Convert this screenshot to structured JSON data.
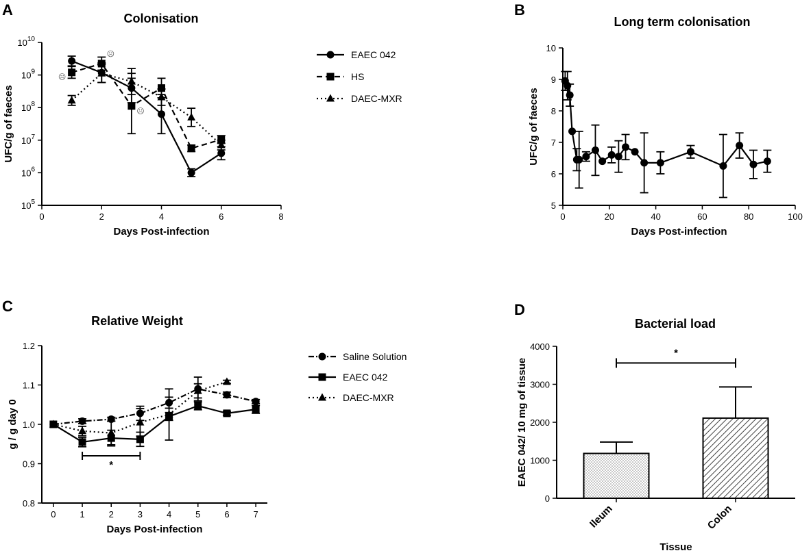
{
  "chart_data": [
    {
      "id": "A",
      "panel_letter": "A",
      "type": "line",
      "title": "Colonisation",
      "xlabel": "Days Post-infection",
      "ylabel": "UFC/g of faeces",
      "xlim": [
        0,
        8
      ],
      "ylim_log10": [
        5,
        10
      ],
      "y_scale": "log",
      "x_ticks": [
        0,
        2,
        4,
        6,
        8
      ],
      "y_ticks": [
        5,
        6,
        7,
        8,
        9,
        10
      ],
      "y_tick_labels": [
        {
          "base": "10",
          "exp": "5"
        },
        {
          "base": "10",
          "exp": "6"
        },
        {
          "base": "10",
          "exp": "7"
        },
        {
          "base": "10",
          "exp": "8"
        },
        {
          "base": "10",
          "exp": "9"
        },
        {
          "base": "10",
          "exp": "10"
        }
      ],
      "legend_position": "right",
      "series": [
        {
          "name": "EAEC 042",
          "marker": "circle",
          "dash": "solid",
          "x": [
            1,
            2,
            3,
            4,
            5,
            6
          ],
          "y_log10": [
            9.43,
            9.07,
            8.6,
            7.8,
            6.0,
            6.6
          ],
          "err_log10": [
            0.15,
            0.3,
            0.45,
            0.6,
            0.12,
            0.2
          ]
        },
        {
          "name": "HS",
          "marker": "square",
          "dash": "dashed",
          "x": [
            1,
            2,
            3,
            4,
            5,
            6
          ],
          "y_log10": [
            9.08,
            9.35,
            8.05,
            8.6,
            6.75,
            7.02
          ],
          "err_log10": [
            0.18,
            0.2,
            0.85,
            0.3,
            0.1,
            0.12
          ]
        },
        {
          "name": "DAEC-MXR",
          "marker": "triangle",
          "dash": "dotted",
          "x": [
            1,
            2,
            3,
            4,
            5,
            6
          ],
          "y_log10": [
            8.22,
            9.05,
            8.8,
            8.32,
            7.7,
            6.85
          ],
          "err_log10": [
            0.15,
            0.28,
            0.4,
            0.25,
            0.28,
            0.15
          ]
        }
      ],
      "markers_symbol": "☹",
      "death_markers": [
        {
          "x": 0.68,
          "y_log10": 8.95
        },
        {
          "x": 2.3,
          "y_log10": 9.65
        },
        {
          "x": 3.3,
          "y_log10": 7.9
        }
      ]
    },
    {
      "id": "B",
      "panel_letter": "B",
      "type": "line",
      "title": "Long term colonisation",
      "xlabel": "Days Post-infection",
      "ylabel": "UFC/g of faeces",
      "xlim": [
        0,
        100
      ],
      "ylim": [
        5,
        10
      ],
      "x_ticks": [
        0,
        20,
        40,
        60,
        80,
        100
      ],
      "y_ticks": [
        5,
        6,
        7,
        8,
        9,
        10
      ],
      "series": [
        {
          "name": "EAEC 042",
          "marker": "circle",
          "dash": "solid",
          "x": [
            1,
            2,
            3,
            4,
            6,
            7,
            10,
            14,
            17,
            21,
            24,
            27,
            31,
            35,
            42,
            55,
            69,
            76,
            82,
            88
          ],
          "y": [
            8.95,
            8.8,
            8.5,
            7.35,
            6.45,
            6.45,
            6.55,
            6.75,
            6.4,
            6.6,
            6.55,
            6.85,
            6.7,
            6.35,
            6.35,
            6.7,
            6.25,
            6.9,
            6.3,
            6.4
          ],
          "err": [
            0.3,
            0.45,
            0.35,
            0.0,
            0.35,
            0.9,
            0.15,
            0.8,
            0.0,
            0.25,
            0.5,
            0.4,
            0.0,
            0.95,
            0.35,
            0.2,
            1.0,
            0.4,
            0.45,
            0.35
          ]
        }
      ]
    },
    {
      "id": "C",
      "panel_letter": "C",
      "type": "line",
      "title": "Relative Weight",
      "xlabel": "Days Post-infection",
      "ylabel": "g / g day 0",
      "xlim": [
        -0.4,
        7.4
      ],
      "ylim": [
        0.8,
        1.2
      ],
      "x_ticks": [
        0,
        1,
        2,
        3,
        4,
        5,
        6,
        7
      ],
      "y_ticks": [
        0.8,
        0.9,
        1.0,
        1.1,
        1.2
      ],
      "y_tick_labels": [
        "0.8",
        "0.9",
        "1.0",
        "1.1",
        "1.2"
      ],
      "legend_position": "right",
      "series": [
        {
          "name": "Saline Solution",
          "marker": "circle",
          "dash": "dashdot",
          "x": [
            0,
            1,
            2,
            3,
            4,
            5,
            6,
            7
          ],
          "y": [
            1.0,
            1.008,
            1.013,
            1.028,
            1.055,
            1.09,
            1.075,
            1.058
          ],
          "err": [
            0,
            0.006,
            0.005,
            0.018,
            0.014,
            0.03,
            0.007,
            0.005
          ]
        },
        {
          "name": " EAEC 042",
          "marker": "square",
          "dash": "solid",
          "x": [
            0,
            1,
            2,
            3,
            4,
            5,
            6,
            7
          ],
          "y": [
            1.0,
            0.955,
            0.965,
            0.962,
            1.02,
            1.047,
            1.028,
            1.038
          ],
          "err": [
            0,
            0.012,
            0.02,
            0.018,
            0.01,
            0.01,
            0.005,
            0.01
          ]
        },
        {
          "name": "DAEC-MXR",
          "marker": "triangle",
          "dash": "dotted",
          "x": [
            0,
            1,
            2,
            3,
            4,
            5,
            6
          ],
          "y": [
            1.0,
            0.983,
            0.978,
            1.005,
            1.025,
            1.085,
            1.108
          ],
          "err": [
            0,
            0.012,
            0.03,
            0.035,
            0.065,
            0.018,
            0.004
          ]
        }
      ],
      "significance": {
        "label": "*",
        "x_from": 1,
        "x_to": 3,
        "y": 0.92
      }
    },
    {
      "id": "D",
      "panel_letter": "D",
      "type": "bar",
      "title": "Bacterial load",
      "xlabel": "Tissue",
      "ylabel": "EAEC 042/ 10 mg of tissue",
      "ylim": [
        0,
        4000
      ],
      "y_ticks": [
        0,
        1000,
        2000,
        3000,
        4000
      ],
      "categories": [
        "Ileum",
        "Colon"
      ],
      "values": [
        1180,
        2110
      ],
      "errors": [
        300,
        820
      ],
      "significance": {
        "label": "*",
        "y": 3560
      }
    }
  ]
}
